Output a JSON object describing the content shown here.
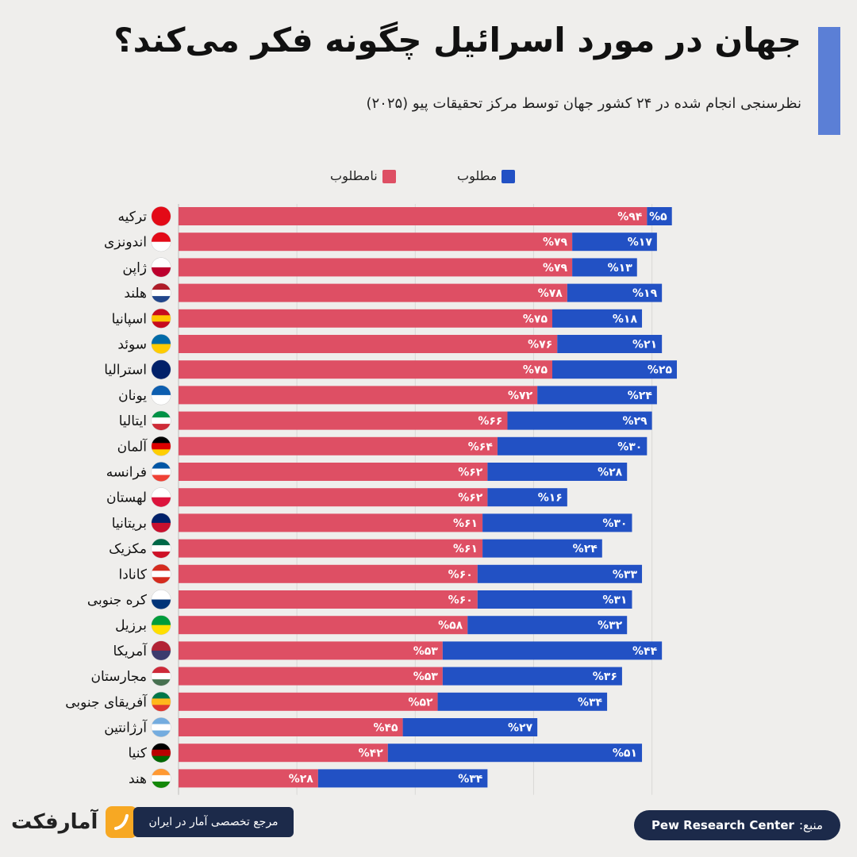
{
  "title": "جهان در مورد اسرائیل چگونه فکر می‌کند؟",
  "subtitle": "نظرسنجی انجام شده در ۲۴ کشور جهان توسط مرکز تحقیقات پیو (۲۰۲۵)",
  "colors": {
    "favorable": "#2251c4",
    "unfavorable": "#de4f64",
    "accent": "#5b7fd6",
    "badge": "#1c2a4a"
  },
  "chart_data": {
    "type": "bar",
    "orientation": "horizontal",
    "stacked": true,
    "categories": [
      "ترکیه",
      "اندونزی",
      "ژاپن",
      "هلند",
      "اسپانیا",
      "سوئد",
      "استرالیا",
      "یونان",
      "ایتالیا",
      "آلمان",
      "فرانسه",
      "لهستان",
      "بریتانیا",
      "مکزیک",
      "کانادا",
      "کره جنوبی",
      "برزیل",
      "آمریکا",
      "مجارستان",
      "آفریقای جنوبی",
      "آرژانتین",
      "کنیا",
      "هند"
    ],
    "series": [
      {
        "name": "نامطلوب",
        "color": "#de4f64",
        "values": [
          94,
          79,
          79,
          78,
          75,
          76,
          75,
          72,
          66,
          64,
          62,
          62,
          61,
          61,
          60,
          60,
          58,
          53,
          53,
          52,
          45,
          42,
          28
        ],
        "labels": [
          "%۹۴",
          "%۷۹",
          "%۷۹",
          "%۷۸",
          "%۷۵",
          "%۷۶",
          "%۷۵",
          "%۷۲",
          "%۶۶",
          "%۶۴",
          "%۶۲",
          "%۶۲",
          "%۶۱",
          "%۶۱",
          "%۶۰",
          "%۶۰",
          "%۵۸",
          "%۵۳",
          "%۵۳",
          "%۵۲",
          "%۴۵",
          "%۴۲",
          "%۲۸"
        ]
      },
      {
        "name": "مطلوب",
        "color": "#2251c4",
        "values": [
          5,
          17,
          13,
          19,
          18,
          21,
          25,
          24,
          29,
          30,
          28,
          16,
          30,
          24,
          33,
          31,
          32,
          44,
          36,
          34,
          27,
          51,
          34
        ],
        "labels": [
          "%۵",
          "%۱۷",
          "%۱۳",
          "%۱۹",
          "%۱۸",
          "%۲۱",
          "%۲۵",
          "%۲۴",
          "%۲۹",
          "%۳۰",
          "%۲۸",
          "%۱۶",
          "%۳۰",
          "%۲۴",
          "%۳۳",
          "%۳۱",
          "%۳۲",
          "%۴۴",
          "%۳۶",
          "%۳۴",
          "%۲۷",
          "%۵۱",
          "%۳۴"
        ]
      }
    ],
    "xlim": [
      0,
      100
    ],
    "grid": true,
    "legend_position": "top"
  },
  "flags": [
    "turkey-flag-icon",
    "indonesia-flag-icon",
    "japan-flag-icon",
    "netherlands-flag-icon",
    "spain-flag-icon",
    "sweden-flag-icon",
    "australia-flag-icon",
    "greece-flag-icon",
    "italy-flag-icon",
    "germany-flag-icon",
    "france-flag-icon",
    "poland-flag-icon",
    "uk-flag-icon",
    "mexico-flag-icon",
    "canada-flag-icon",
    "south-korea-flag-icon",
    "brazil-flag-icon",
    "usa-flag-icon",
    "hungary-flag-icon",
    "south-africa-flag-icon",
    "argentina-flag-icon",
    "kenya-flag-icon",
    "india-flag-icon"
  ],
  "footer": {
    "logo_text": "آمارفکت",
    "reference": "مرجع تخصصی آمار در ایران",
    "source_label": "منبع:",
    "source_name": "Pew Research Center"
  }
}
